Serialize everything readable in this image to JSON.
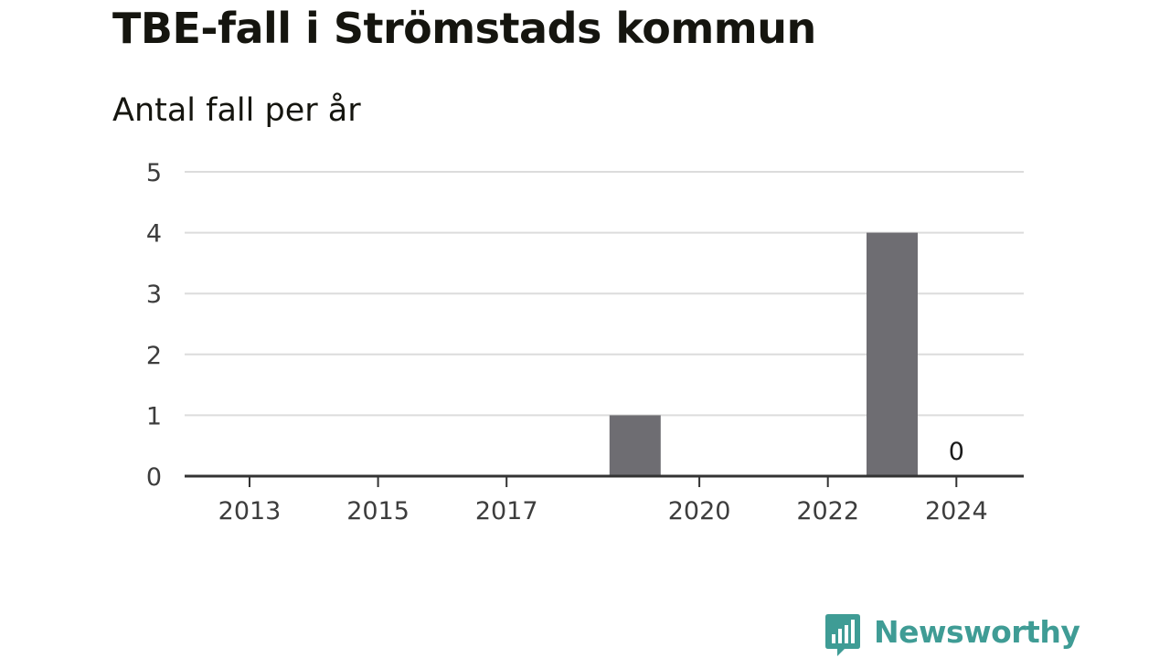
{
  "header": {
    "title": "TBE-fall i Strömstads kommun",
    "subtitle": "Antal fall per år"
  },
  "brand": {
    "name": "Newsworthy",
    "color": "#3f9c95",
    "icon": "bar-chart-speech-bubble-icon"
  },
  "colors": {
    "bar": "#6e6d72",
    "grid": "#dcdcdc",
    "axis": "#333333"
  },
  "chart_data": {
    "type": "bar",
    "title": "TBE-fall i Strömstads kommun",
    "subtitle": "Antal fall per år",
    "xlabel": "",
    "ylabel": "",
    "categories": [
      "2013",
      "2014",
      "2015",
      "2016",
      "2017",
      "2018",
      "2019",
      "2020",
      "2021",
      "2022",
      "2023",
      "2024"
    ],
    "values": [
      0,
      0,
      0,
      0,
      0,
      0,
      1,
      0,
      0,
      0,
      4,
      0
    ],
    "x_tick_labels": [
      "2013",
      "2015",
      "2017",
      "2020",
      "2022",
      "2024"
    ],
    "y_ticks": [
      0,
      1,
      2,
      3,
      4,
      5
    ],
    "ylim": [
      0,
      5
    ],
    "grid": true,
    "data_labels": [
      {
        "category": "2024",
        "text": "0"
      }
    ]
  }
}
